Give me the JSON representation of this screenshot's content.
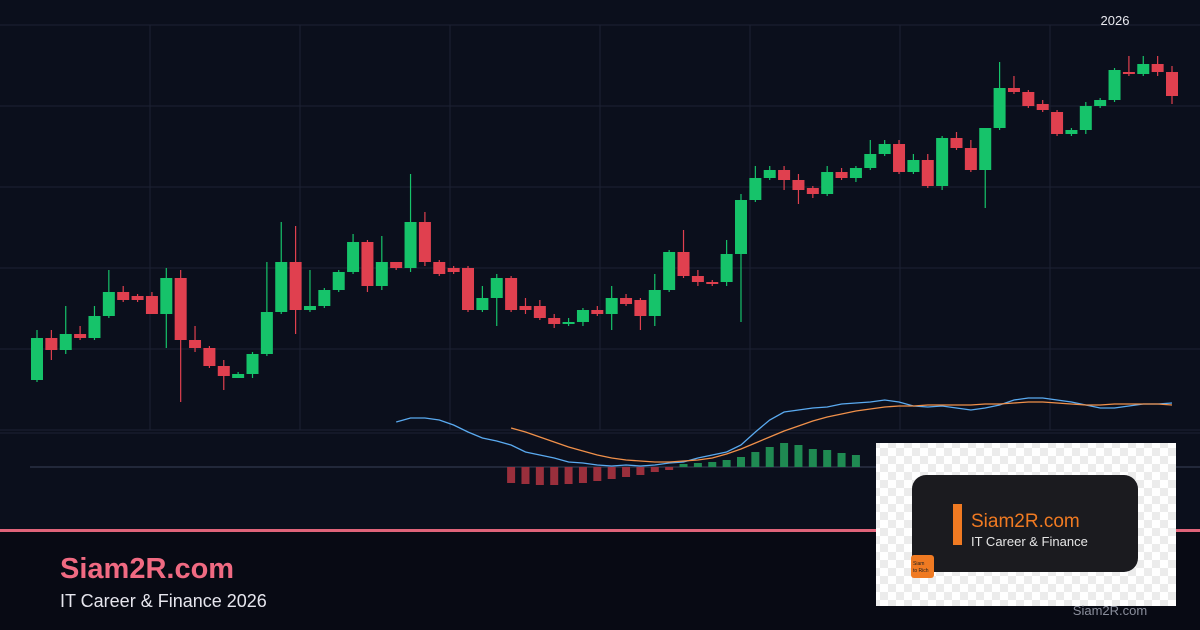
{
  "chart_data": [
    {
      "type": "candlestick",
      "annotation": "2026",
      "up_color": "#16c36a",
      "down_color": "#e0404f",
      "ylim": [
        0,
        100
      ],
      "grid": true,
      "open": [
        12.5,
        23,
        20,
        24,
        23,
        28.5,
        34.5,
        33.5,
        33.5,
        29,
        38,
        22.5,
        20.5,
        16,
        13,
        14,
        19,
        29.5,
        42,
        30,
        31,
        35,
        39.5,
        47,
        36,
        42,
        40.5,
        52,
        42,
        40.5,
        40.5,
        30,
        33,
        38,
        31,
        31,
        28,
        26.5,
        27,
        30,
        29,
        33,
        32.5,
        28.5,
        35,
        44.5,
        38.5,
        37,
        37,
        44,
        57.5,
        63,
        65,
        62.5,
        60.5,
        59,
        64.5,
        63,
        65.5,
        69,
        71.5,
        64.5,
        67.5,
        61,
        73,
        70.5,
        65,
        75.5,
        85.5,
        84.5,
        81.5,
        79.5,
        74,
        75,
        81,
        82.5,
        89.5,
        89,
        91.5,
        89.5
      ],
      "high": [
        25,
        25,
        31,
        26,
        31,
        40,
        36,
        34,
        34.5,
        40.5,
        40,
        26,
        21,
        17.5,
        14.5,
        19.5,
        42,
        52,
        51,
        40,
        35.5,
        40,
        49,
        47.5,
        48.5,
        42,
        64,
        54.5,
        42.5,
        41,
        41,
        36,
        39,
        38.5,
        33,
        32.5,
        29,
        28,
        30.5,
        31,
        36,
        34,
        33,
        39,
        45,
        50,
        40,
        37.5,
        47.5,
        59,
        66,
        66,
        66,
        64,
        61,
        66,
        65.5,
        66,
        72.5,
        72.5,
        72.5,
        69,
        69,
        73.5,
        74.5,
        72.5,
        75.5,
        92,
        88.5,
        85,
        82.5,
        80,
        75.5,
        82,
        83,
        90.5,
        93.5,
        93.5,
        93.5,
        91
      ],
      "low": [
        12,
        17.5,
        19,
        22.5,
        22.5,
        28,
        32,
        32,
        29,
        20.5,
        7,
        19.5,
        15.5,
        10,
        13,
        13,
        18.5,
        29,
        24,
        29.5,
        30.5,
        34.5,
        39,
        34.5,
        35,
        40,
        39.5,
        41,
        38.5,
        39,
        29.5,
        29.5,
        26,
        29.5,
        29,
        27.5,
        25.5,
        26,
        26,
        28.5,
        25,
        31,
        25,
        26,
        34.5,
        38,
        36,
        36,
        36,
        27,
        57,
        62.5,
        60,
        56.5,
        58,
        58.5,
        62.5,
        62,
        65,
        68.5,
        64,
        64,
        60.5,
        60,
        70,
        64.5,
        55.5,
        75,
        84,
        80.5,
        79.5,
        73.5,
        73.5,
        74,
        80.5,
        82,
        88.5,
        88.5,
        88.5,
        81.5
      ],
      "close": [
        23,
        20,
        24,
        23,
        28.5,
        34.5,
        32.5,
        32.5,
        29,
        38,
        22.5,
        20.5,
        16,
        13.5,
        14,
        19,
        29.5,
        42,
        30,
        31,
        35,
        39.5,
        47,
        36,
        42,
        40.5,
        52,
        42,
        39,
        39.5,
        30,
        33,
        38,
        30,
        30,
        28,
        26.5,
        27,
        30,
        29,
        33,
        31.5,
        28.5,
        35,
        44.5,
        38.5,
        37,
        36.5,
        44,
        57.5,
        63,
        65,
        62.5,
        60,
        59,
        64.5,
        63,
        65.5,
        69,
        71.5,
        64.5,
        67.5,
        61,
        73,
        70.5,
        65,
        75.5,
        85.5,
        84.5,
        81,
        80,
        74,
        75,
        81,
        82.5,
        90,
        89,
        91.5,
        89.5,
        83.5
      ]
    },
    {
      "type": "macd",
      "ylim": [
        -4,
        8
      ],
      "positive_color": "#1f8a52",
      "negative_color": "#9a2f3c",
      "series": [
        {
          "kind": "line",
          "color": "#5aaaf0",
          "values": [
            null,
            null,
            null,
            null,
            null,
            null,
            null,
            null,
            null,
            null,
            null,
            null,
            null,
            null,
            null,
            null,
            null,
            null,
            null,
            null,
            null,
            null,
            null,
            null,
            null,
            4.5,
            4.9,
            4.9,
            4.7,
            4.2,
            3.5,
            2.9,
            2.6,
            2.2,
            1.5,
            1.2,
            0.9,
            0.5,
            0.4,
            0.2,
            0.1,
            0.2,
            0.1,
            0.2,
            0.4,
            0.5,
            0.9,
            1.2,
            1.5,
            2.2,
            3.5,
            4.7,
            5.5,
            5.7,
            5.9,
            6.0,
            6.3,
            6.4,
            6.5,
            6.7,
            6.5,
            6.1,
            6.0,
            6.1,
            5.9,
            5.7,
            5.9,
            6.2,
            6.7,
            6.9,
            6.9,
            6.7,
            6.5,
            6.2,
            5.9,
            5.9,
            6.1,
            6.3,
            6.3,
            6.4
          ]
        },
        {
          "kind": "line",
          "color": "#f0904a",
          "values": [
            null,
            null,
            null,
            null,
            null,
            null,
            null,
            null,
            null,
            null,
            null,
            null,
            null,
            null,
            null,
            null,
            null,
            null,
            null,
            null,
            null,
            null,
            null,
            null,
            null,
            null,
            null,
            null,
            null,
            null,
            null,
            null,
            null,
            3.9,
            3.5,
            3.0,
            2.5,
            2.0,
            1.6,
            1.2,
            0.9,
            0.7,
            0.6,
            0.5,
            0.5,
            0.6,
            0.7,
            0.9,
            1.3,
            1.8,
            2.4,
            3.0,
            3.6,
            4.1,
            4.6,
            5.0,
            5.3,
            5.6,
            5.8,
            6.0,
            6.1,
            6.1,
            6.2,
            6.2,
            6.2,
            6.2,
            6.3,
            6.3,
            6.4,
            6.5,
            6.5,
            6.4,
            6.3,
            6.2,
            6.2,
            6.3,
            6.3,
            6.3,
            6.3,
            6.2
          ]
        },
        {
          "kind": "histogram",
          "values": [
            null,
            null,
            null,
            null,
            null,
            null,
            null,
            null,
            null,
            null,
            null,
            null,
            null,
            null,
            null,
            null,
            null,
            null,
            null,
            null,
            null,
            null,
            null,
            null,
            null,
            null,
            null,
            null,
            null,
            null,
            null,
            null,
            null,
            -1.6,
            -1.7,
            -1.8,
            -1.8,
            -1.7,
            -1.6,
            -1.4,
            -1.2,
            -1.0,
            -0.8,
            -0.5,
            -0.3,
            0.3,
            0.4,
            0.5,
            0.7,
            1.0,
            1.5,
            2.0,
            2.4,
            2.2,
            1.8,
            1.7,
            1.4,
            1.2,
            null,
            null,
            null,
            null,
            null,
            null,
            null,
            null,
            null,
            null,
            null,
            null,
            null,
            null,
            null,
            null,
            null,
            null,
            null,
            null,
            null,
            null,
            null,
            null
          ]
        }
      ]
    }
  ],
  "brand": {
    "name": "Siam2R.com",
    "tagline": "IT Career & Finance 2026"
  },
  "logo": {
    "name": "Siam2R.com",
    "tagline": "IT Career & Finance",
    "icon_lines": [
      "Siam",
      "to Rich"
    ]
  },
  "watermark": "Siam2R.com"
}
